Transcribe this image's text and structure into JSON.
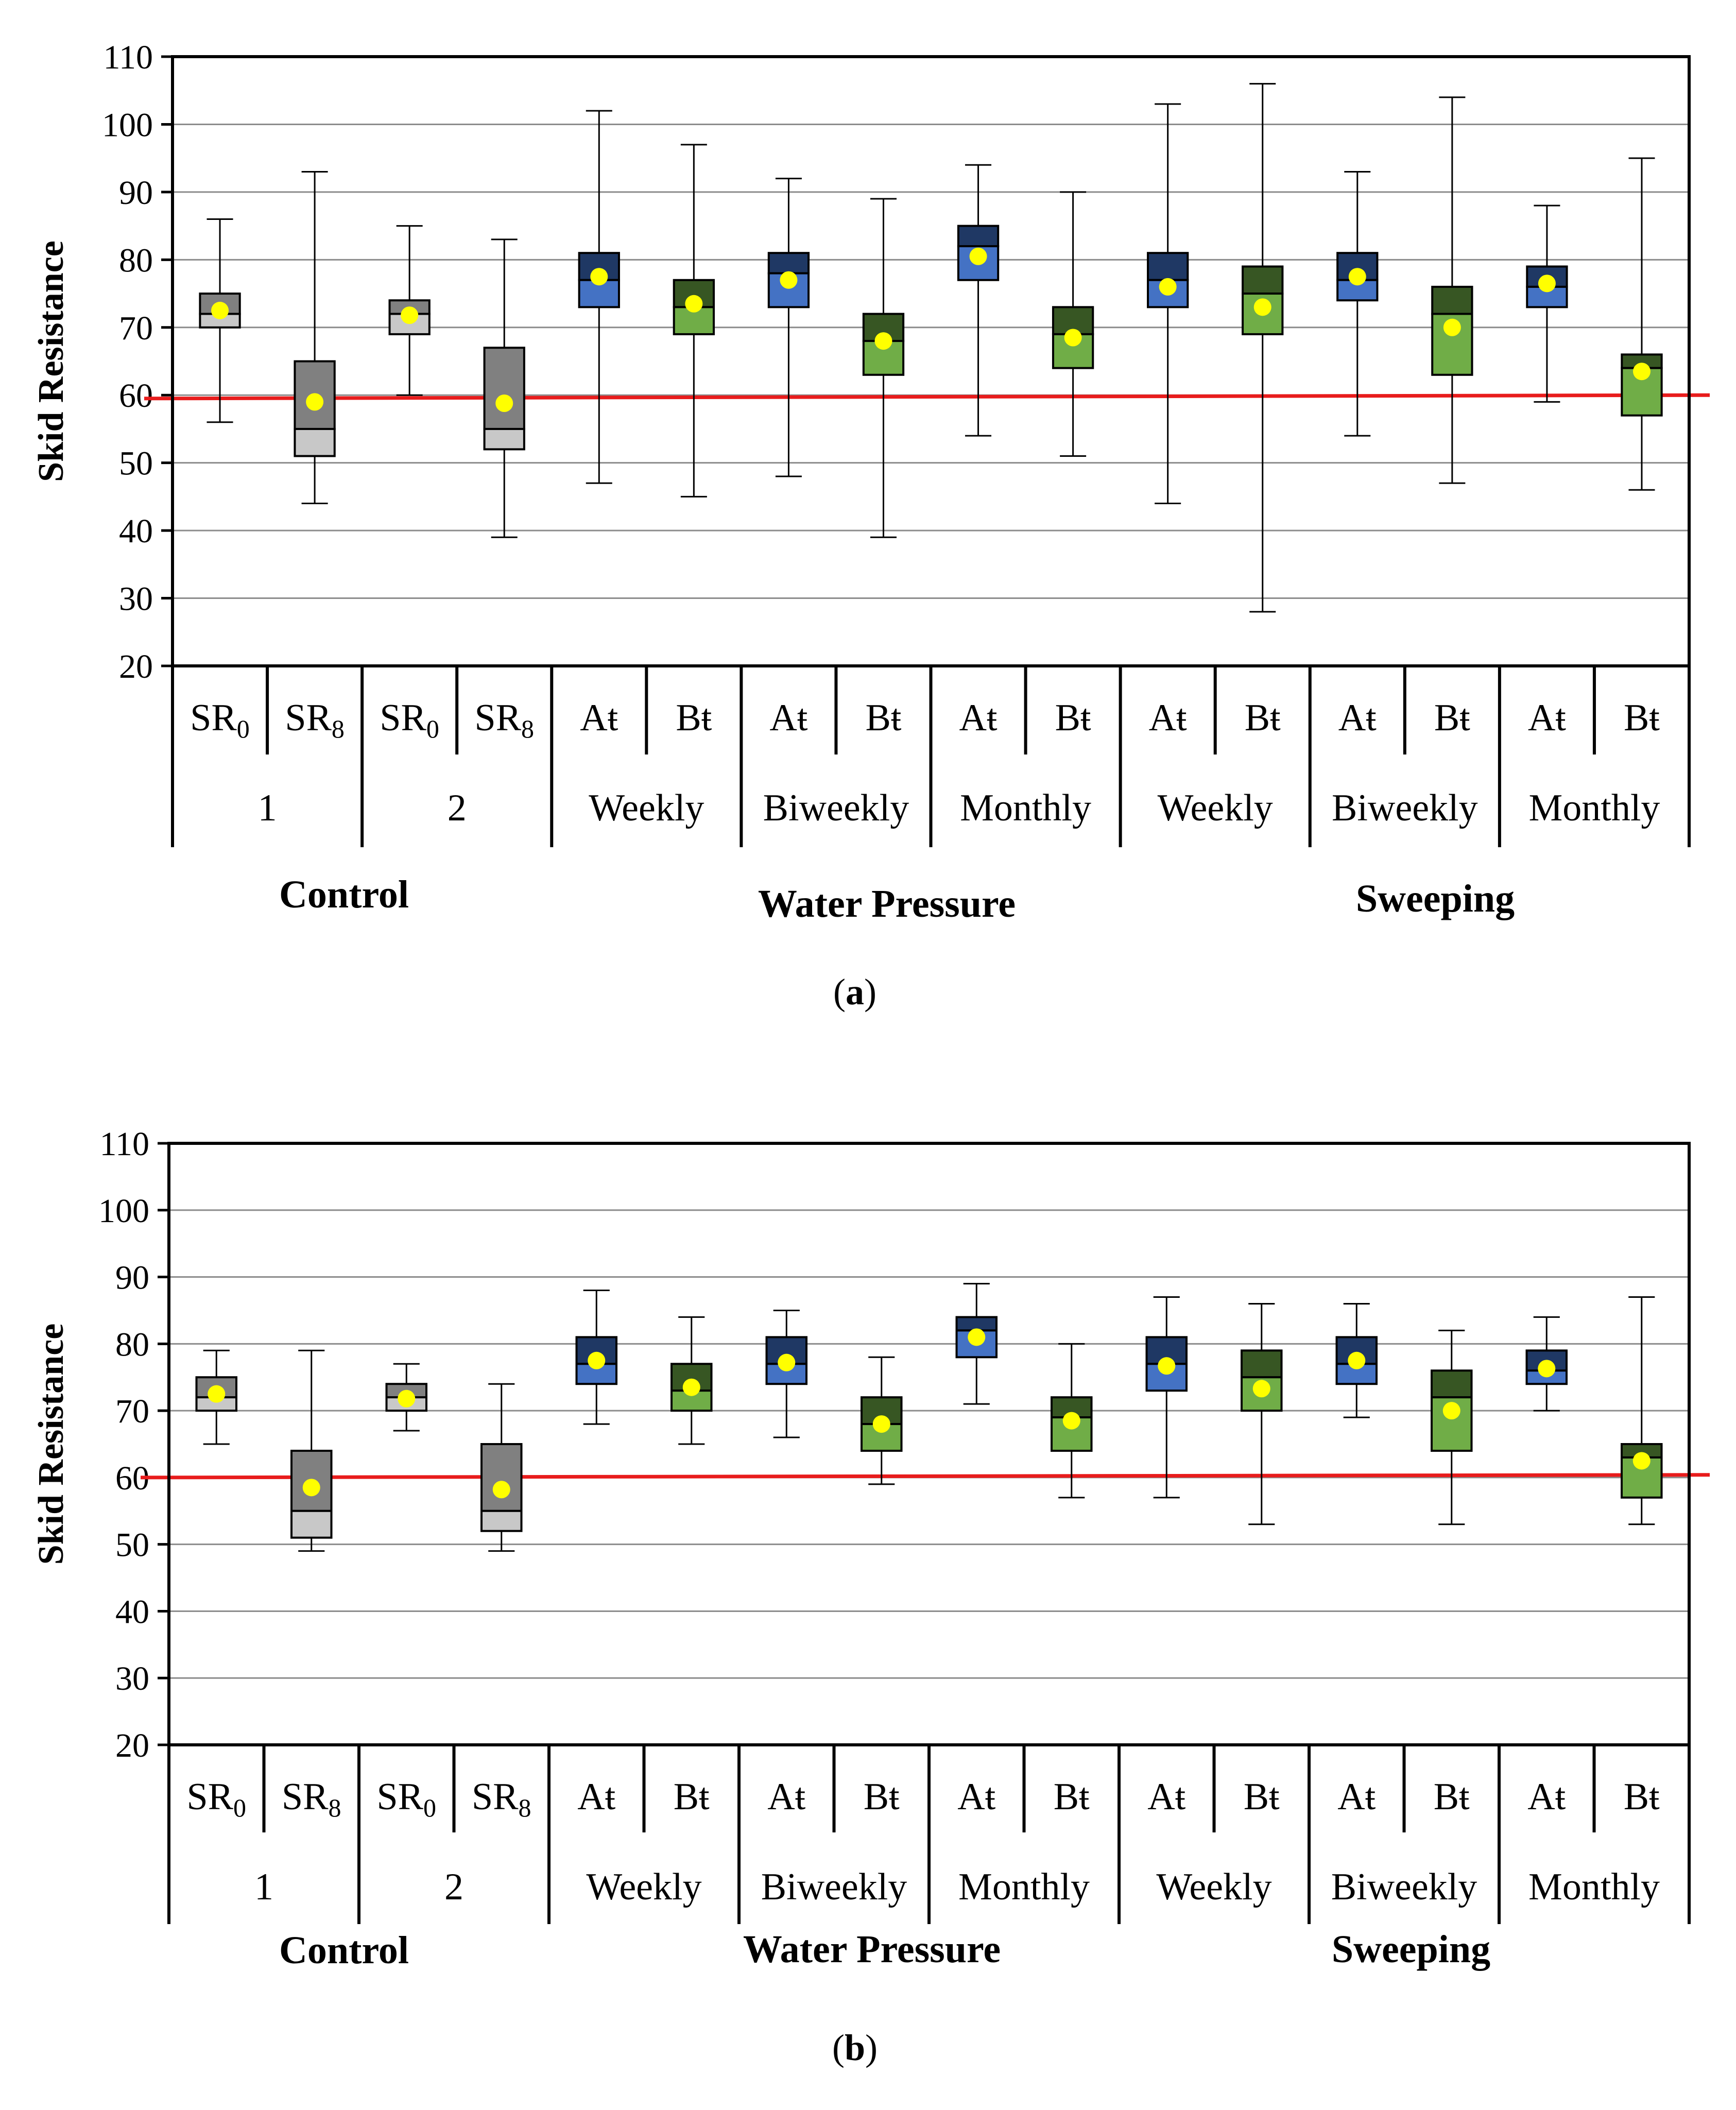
{
  "chart_data": [
    {
      "type": "box",
      "panel_caption_letter": "a",
      "ylabel": "Skid Resistance",
      "ylim": [
        20,
        110
      ],
      "yticks": [
        "20",
        "30",
        "40",
        "50",
        "60",
        "70",
        "80",
        "90",
        "100",
        "110"
      ],
      "threshold": [
        59.5,
        60.0
      ],
      "sections": [
        "Control",
        "Water Pressure",
        "Sweeping"
      ],
      "groups": [
        "1",
        "2",
        "Weekly",
        "Biweekly",
        "Monthly",
        "Weekly",
        "Biweekly",
        "Monthly"
      ],
      "categories": [
        {
          "base": "SR",
          "sub": "0",
          "style": "gray",
          "min": 56,
          "q1": 70,
          "median": 72,
          "q3": 75,
          "max": 86,
          "mean": 72.5
        },
        {
          "base": "SR",
          "sub": "8",
          "style": "gray",
          "min": 44,
          "q1": 51,
          "median": 55,
          "q3": 65,
          "max": 93,
          "mean": 59
        },
        {
          "base": "SR",
          "sub": "0",
          "style": "gray",
          "min": 60,
          "q1": 69,
          "median": 72,
          "q3": 74,
          "max": 85,
          "mean": 71.8
        },
        {
          "base": "SR",
          "sub": "8",
          "style": "gray",
          "min": 39,
          "q1": 52,
          "median": 55,
          "q3": 67,
          "max": 83,
          "mean": 58.8
        },
        {
          "base": "Aŧ",
          "sub": "",
          "style": "blue",
          "min": 47,
          "q1": 73,
          "median": 77,
          "q3": 81,
          "max": 102,
          "mean": 77.5
        },
        {
          "base": "Bŧ",
          "sub": "",
          "style": "green",
          "min": 45,
          "q1": 69,
          "median": 73,
          "q3": 77,
          "max": 97,
          "mean": 73.5
        },
        {
          "base": "Aŧ",
          "sub": "",
          "style": "blue",
          "min": 48,
          "q1": 73,
          "median": 78,
          "q3": 81,
          "max": 92,
          "mean": 77
        },
        {
          "base": "Bŧ",
          "sub": "",
          "style": "green",
          "min": 39,
          "q1": 63,
          "median": 68,
          "q3": 72,
          "max": 89,
          "mean": 68
        },
        {
          "base": "Aŧ",
          "sub": "",
          "style": "blue",
          "min": 54,
          "q1": 77,
          "median": 82,
          "q3": 85,
          "max": 94,
          "mean": 80.5
        },
        {
          "base": "Bŧ",
          "sub": "",
          "style": "green",
          "min": 51,
          "q1": 64,
          "median": 69,
          "q3": 73,
          "max": 90,
          "mean": 68.5
        },
        {
          "base": "Aŧ",
          "sub": "",
          "style": "blue",
          "min": 44,
          "q1": 73,
          "median": 77,
          "q3": 81,
          "max": 103,
          "mean": 76
        },
        {
          "base": "Bŧ",
          "sub": "",
          "style": "green",
          "min": 28,
          "q1": 69,
          "median": 75,
          "q3": 79,
          "max": 106,
          "mean": 73
        },
        {
          "base": "Aŧ",
          "sub": "",
          "style": "blue",
          "min": 54,
          "q1": 74,
          "median": 77,
          "q3": 81,
          "max": 93,
          "mean": 77.5
        },
        {
          "base": "Bŧ",
          "sub": "",
          "style": "green",
          "min": 47,
          "q1": 63,
          "median": 72,
          "q3": 76,
          "max": 104,
          "mean": 70
        },
        {
          "base": "Aŧ",
          "sub": "",
          "style": "blue",
          "min": 59,
          "q1": 73,
          "median": 76,
          "q3": 79,
          "max": 88,
          "mean": 76.5
        },
        {
          "base": "Bŧ",
          "sub": "",
          "style": "green",
          "min": 46,
          "q1": 57,
          "median": 64,
          "q3": 66,
          "max": 95,
          "mean": 63.5
        }
      ]
    },
    {
      "type": "box",
      "panel_caption_letter": "b",
      "ylabel": "Skid Resistance",
      "ylim": [
        20,
        110
      ],
      "yticks": [
        "20",
        "30",
        "40",
        "50",
        "60",
        "70",
        "80",
        "90",
        "100",
        "110"
      ],
      "threshold": [
        60.0,
        60.4
      ],
      "sections": [
        "Control",
        "Water Pressure",
        "Sweeping"
      ],
      "groups": [
        "1",
        "2",
        "Weekly",
        "Biweekly",
        "Monthly",
        "Weekly",
        "Biweekly",
        "Monthly"
      ],
      "categories": [
        {
          "base": "SR",
          "sub": "0",
          "style": "gray",
          "min": 65,
          "q1": 70,
          "median": 72,
          "q3": 75,
          "max": 79,
          "mean": 72.5
        },
        {
          "base": "SR",
          "sub": "8",
          "style": "gray",
          "min": 49,
          "q1": 51,
          "median": 55,
          "q3": 64,
          "max": 79,
          "mean": 58.5
        },
        {
          "base": "SR",
          "sub": "0",
          "style": "gray",
          "min": 67,
          "q1": 70,
          "median": 72,
          "q3": 74,
          "max": 77,
          "mean": 71.8
        },
        {
          "base": "SR",
          "sub": "8",
          "style": "gray",
          "min": 49,
          "q1": 52,
          "median": 55,
          "q3": 65,
          "max": 74,
          "mean": 58.2
        },
        {
          "base": "Aŧ",
          "sub": "",
          "style": "blue",
          "min": 68,
          "q1": 74,
          "median": 77,
          "q3": 81,
          "max": 88,
          "mean": 77.5
        },
        {
          "base": "Bŧ",
          "sub": "",
          "style": "green",
          "min": 65,
          "q1": 70,
          "median": 73,
          "q3": 77,
          "max": 84,
          "mean": 73.5
        },
        {
          "base": "Aŧ",
          "sub": "",
          "style": "blue",
          "min": 66,
          "q1": 74,
          "median": 77,
          "q3": 81,
          "max": 85,
          "mean": 77.2
        },
        {
          "base": "Bŧ",
          "sub": "",
          "style": "green",
          "min": 59,
          "q1": 64,
          "median": 68,
          "q3": 72,
          "max": 78,
          "mean": 68
        },
        {
          "base": "Aŧ",
          "sub": "",
          "style": "blue",
          "min": 71,
          "q1": 78,
          "median": 82,
          "q3": 84,
          "max": 89,
          "mean": 81
        },
        {
          "base": "Bŧ",
          "sub": "",
          "style": "green",
          "min": 57,
          "q1": 64,
          "median": 69,
          "q3": 72,
          "max": 80,
          "mean": 68.5
        },
        {
          "base": "Aŧ",
          "sub": "",
          "style": "blue",
          "min": 57,
          "q1": 73,
          "median": 77,
          "q3": 81,
          "max": 87,
          "mean": 76.7
        },
        {
          "base": "Bŧ",
          "sub": "",
          "style": "green",
          "min": 53,
          "q1": 70,
          "median": 75,
          "q3": 79,
          "max": 86,
          "mean": 73.3
        },
        {
          "base": "Aŧ",
          "sub": "",
          "style": "blue",
          "min": 69,
          "q1": 74,
          "median": 77,
          "q3": 81,
          "max": 86,
          "mean": 77.5
        },
        {
          "base": "Bŧ",
          "sub": "",
          "style": "green",
          "min": 53,
          "q1": 64,
          "median": 72,
          "q3": 76,
          "max": 82,
          "mean": 70
        },
        {
          "base": "Aŧ",
          "sub": "",
          "style": "blue",
          "min": 70,
          "q1": 74,
          "median": 76,
          "q3": 79,
          "max": 84,
          "mean": 76.3
        },
        {
          "base": "Bŧ",
          "sub": "",
          "style": "green",
          "min": 53,
          "q1": 57,
          "median": 63,
          "q3": 65,
          "max": 87,
          "mean": 62.5
        }
      ]
    }
  ]
}
